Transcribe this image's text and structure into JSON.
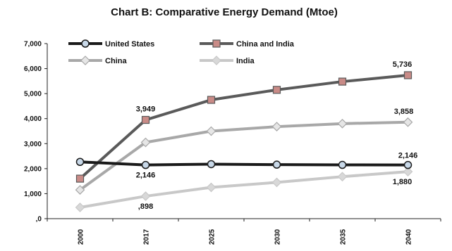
{
  "chart_data": {
    "type": "line",
    "title": "Chart B: Comparative Energy Demand (Mtoe)",
    "xlabel": "",
    "ylabel": "",
    "categories": [
      "2000",
      "2017",
      "2025",
      "2030",
      "2035",
      "2040"
    ],
    "y_ticks": [
      ",0",
      "1,000",
      "2,000",
      "3,000",
      "4,000",
      "5,000",
      "6,000",
      "7,000"
    ],
    "ylim": [
      0,
      7000
    ],
    "grid": false,
    "legend": "top-left, two columns",
    "series": [
      {
        "name": "United States",
        "values": [
          2270,
          2146,
          2180,
          2160,
          2150,
          2146
        ],
        "color": "#1a1a1a",
        "marker_fill": "#c8d8e8",
        "marker": "circle"
      },
      {
        "name": "China and India",
        "values": [
          1600,
          3949,
          4750,
          5150,
          5480,
          5736
        ],
        "color": "#5a5a5a",
        "marker_fill": "#c98b87",
        "marker": "square"
      },
      {
        "name": "China",
        "values": [
          1150,
          3050,
          3500,
          3680,
          3800,
          3858
        ],
        "color": "#a8a8a8",
        "marker_fill": "#e6e6e6",
        "marker": "diamond"
      },
      {
        "name": "India",
        "values": [
          450,
          898,
          1250,
          1450,
          1680,
          1880
        ],
        "color": "#c8c8c8",
        "marker_fill": "#d8d8d8",
        "marker": "diamond"
      }
    ],
    "data_labels": [
      {
        "series": 1,
        "index": 1,
        "text": "3,949"
      },
      {
        "series": 1,
        "index": 5,
        "text": "5,736"
      },
      {
        "series": 0,
        "index": 1,
        "text": "2,146"
      },
      {
        "series": 0,
        "index": 5,
        "text": "2,146"
      },
      {
        "series": 2,
        "index": 5,
        "text": "3,858"
      },
      {
        "series": 3,
        "index": 1,
        "text": ",898"
      },
      {
        "series": 3,
        "index": 5,
        "text": "1,880"
      }
    ]
  }
}
